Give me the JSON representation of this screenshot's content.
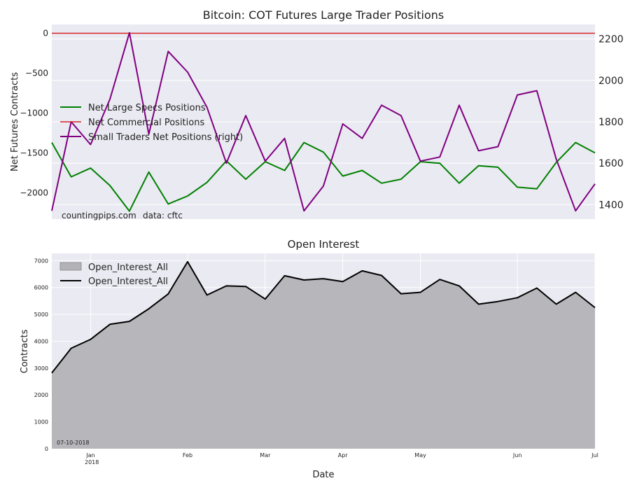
{
  "chart_data": [
    {
      "type": "line",
      "title": "Bitcoin: COT Futures Large Trader Positions",
      "ylabel": "Net Futures Contracts",
      "ylim": [
        -2330,
        110
      ],
      "yticks": [
        0,
        -500,
        -1000,
        -1500,
        -2000
      ],
      "y_tick_labels": [
        "0",
        "−500",
        "−1000",
        "−1500",
        "−2000"
      ],
      "y2lim": [
        1330,
        2270
      ],
      "y2ticks": [
        2200,
        2000,
        1800,
        1600,
        1400
      ],
      "y2_tick_labels": [
        "2200",
        "2000",
        "1800",
        "1600",
        "1400"
      ],
      "legend_position": "left",
      "legend": [
        "Net Large Specs Positions",
        "Net Commercial Positions",
        "Small Traders Net Positions (right)"
      ],
      "series": [
        {
          "name": "Net Large Specs Positions",
          "color": "#008000",
          "axis": "left",
          "values": [
            -1370,
            -1800,
            -1690,
            -1910,
            -2230,
            -1740,
            -2140,
            -2040,
            -1870,
            -1600,
            -1830,
            -1610,
            -1720,
            -1370,
            -1490,
            -1790,
            -1720,
            -1880,
            -1830,
            -1610,
            -1630,
            -1880,
            -1660,
            -1680,
            -1930,
            -1950,
            -1620,
            -1370,
            -1500
          ]
        },
        {
          "name": "Net Commercial Positions",
          "color": "#d62728",
          "axis": "left",
          "values": [
            0,
            0,
            0,
            0,
            0,
            0,
            0,
            0,
            0,
            0,
            0,
            0,
            0,
            0,
            0,
            0,
            0,
            0,
            0,
            0,
            0,
            0,
            0,
            0,
            0,
            0,
            0,
            0,
            0
          ]
        },
        {
          "name": "Small Traders Net Positions (right)",
          "color": "#800080",
          "axis": "right",
          "values": [
            1370,
            1800,
            1690,
            1910,
            2230,
            1740,
            2140,
            2040,
            1870,
            1600,
            1830,
            1610,
            1720,
            1370,
            1490,
            1790,
            1720,
            1880,
            1830,
            1610,
            1630,
            1880,
            1660,
            1680,
            1930,
            1950,
            1620,
            1370,
            1500
          ]
        }
      ],
      "annotation_source": "countingpips.com",
      "annotation_data": "data: cftc"
    },
    {
      "type": "area",
      "title": "Open Interest",
      "xlabel": "Date",
      "ylabel": "Contracts",
      "ylim": [
        0,
        7270
      ],
      "yticks": [
        0,
        1000,
        2000,
        3000,
        4000,
        5000,
        6000,
        7000
      ],
      "y_tick_labels": [
        "0",
        "1000",
        "2000",
        "3000",
        "4000",
        "5000",
        "6000",
        "7000"
      ],
      "x_tick_labels": [
        "Jan",
        "Feb",
        "Mar",
        "Apr",
        "May",
        "Jun",
        "Jul"
      ],
      "x_tick_year": "2018",
      "x_tick_index": [
        2,
        7,
        11,
        15,
        19,
        24,
        28
      ],
      "legend_position": "top-left",
      "legend": [
        "Open_Interest_All",
        "Open_Interest_All"
      ],
      "series": [
        {
          "name": "Open_Interest_All",
          "color": "#000000",
          "fill": "#b3b3b7",
          "values": [
            2820,
            3740,
            4070,
            4630,
            4740,
            5210,
            5760,
            6960,
            5720,
            6060,
            6040,
            5570,
            6440,
            6280,
            6330,
            6220,
            6620,
            6450,
            5770,
            5820,
            6300,
            6060,
            5380,
            5480,
            5620,
            5980,
            5380,
            5820,
            5250
          ]
        }
      ],
      "annotation_date": "07-10-2018"
    }
  ]
}
